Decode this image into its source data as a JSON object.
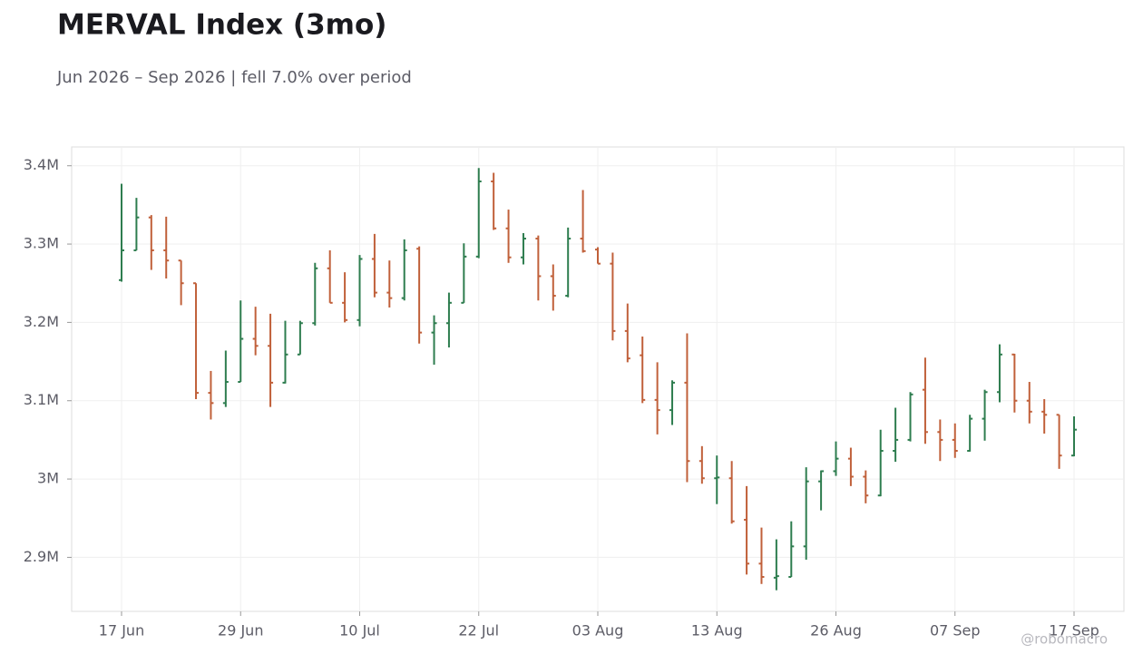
{
  "chart_data": {
    "type": "ohlc",
    "title": "MERVAL Index (3mo)",
    "subtitle": "Jun 2026 – Sep 2026 | fell 7.0% over period",
    "watermark": "@robomacro",
    "categories": [
      "17 Jun",
      null,
      null,
      null,
      null,
      null,
      null,
      null,
      "29 Jun",
      null,
      null,
      null,
      null,
      null,
      null,
      null,
      "10 Jul",
      null,
      null,
      null,
      null,
      null,
      null,
      null,
      "22 Jul",
      null,
      null,
      null,
      null,
      null,
      null,
      null,
      "03 Aug",
      null,
      null,
      null,
      null,
      null,
      null,
      null,
      "13 Aug",
      null,
      null,
      null,
      null,
      null,
      null,
      null,
      "26 Aug",
      null,
      null,
      null,
      null,
      null,
      null,
      null,
      "07 Sep",
      null,
      null,
      null,
      null,
      null,
      null,
      null,
      "17 Sep"
    ],
    "open": [
      3254000,
      3292000,
      3334000,
      3292000,
      3279000,
      3250000,
      3110000,
      3097000,
      3124000,
      3179000,
      3170000,
      3123000,
      3159000,
      3199000,
      3269000,
      3225000,
      3203000,
      3281000,
      3238000,
      3231000,
      3294000,
      3187000,
      3199000,
      3225000,
      3284000,
      3380000,
      3320000,
      3283000,
      3307000,
      3259000,
      3234000,
      3307000,
      3293000,
      3275000,
      3189000,
      3158000,
      3101000,
      3088000,
      3123000,
      3023000,
      3001000,
      3001000,
      2948000,
      2892000,
      2874000,
      2875000,
      2914000,
      2997000,
      3010000,
      3026000,
      3003000,
      2979000,
      3036000,
      3050000,
      3114000,
      3060000,
      3050000,
      3036000,
      3077000,
      3111000,
      3159000,
      3100000,
      3086000,
      3082000,
      3030000
    ],
    "high": [
      3377000,
      3359000,
      3337000,
      3335000,
      3279000,
      3250000,
      3138000,
      3164000,
      3228000,
      3220000,
      3211000,
      3202000,
      3202000,
      3276000,
      3292000,
      3264000,
      3286000,
      3313000,
      3279000,
      3306000,
      3297000,
      3209000,
      3238000,
      3301000,
      3397000,
      3391000,
      3344000,
      3314000,
      3311000,
      3274000,
      3321000,
      3369000,
      3296000,
      3289000,
      3224000,
      3182000,
      3149000,
      3126000,
      3186000,
      3042000,
      3030000,
      3023000,
      2991000,
      2938000,
      2923000,
      2946000,
      3015000,
      3011000,
      3048000,
      3040000,
      3011000,
      3063000,
      3091000,
      3111000,
      3155000,
      3076000,
      3071000,
      3082000,
      3114000,
      3172000,
      3160000,
      3124000,
      3102000,
      3082000,
      3080000
    ],
    "low": [
      3252000,
      3292000,
      3267000,
      3256000,
      3222000,
      3102000,
      3076000,
      3092000,
      3124000,
      3158000,
      3092000,
      3122000,
      3159000,
      3196000,
      3225000,
      3200000,
      3195000,
      3232000,
      3219000,
      3228000,
      3173000,
      3146000,
      3168000,
      3225000,
      3282000,
      3318000,
      3276000,
      3274000,
      3228000,
      3215000,
      3232000,
      3289000,
      3275000,
      3177000,
      3149000,
      3097000,
      3057000,
      3069000,
      2996000,
      2994000,
      2968000,
      2943000,
      2878000,
      2866000,
      2858000,
      2875000,
      2897000,
      2960000,
      3004000,
      2991000,
      2969000,
      2978000,
      3022000,
      3048000,
      3045000,
      3023000,
      3027000,
      3035000,
      3049000,
      3098000,
      3085000,
      3071000,
      3058000,
      3013000,
      3029000
    ],
    "close": [
      3292000,
      3334000,
      3292000,
      3279000,
      3250000,
      3110000,
      3097000,
      3124000,
      3179000,
      3170000,
      3123000,
      3159000,
      3199000,
      3269000,
      3225000,
      3203000,
      3281000,
      3238000,
      3231000,
      3292000,
      3187000,
      3199000,
      3225000,
      3284000,
      3380000,
      3320000,
      3283000,
      3307000,
      3259000,
      3234000,
      3307000,
      3291000,
      3275000,
      3189000,
      3154000,
      3101000,
      3088000,
      3123000,
      3023000,
      3001000,
      3002000,
      2946000,
      2892000,
      2875000,
      2876000,
      2914000,
      2997000,
      3010000,
      3026000,
      3003000,
      2979000,
      3036000,
      3050000,
      3108000,
      3060000,
      3050000,
      3036000,
      3077000,
      3111000,
      3159000,
      3100000,
      3086000,
      3082000,
      3030000,
      3063000
    ],
    "up_color": "#2e7d4f",
    "down_color": "#c0603a",
    "ylim": [
      2831000,
      3424000
    ],
    "yticks": [
      {
        "value": 2900000,
        "label": "2.9M"
      },
      {
        "value": 3000000,
        "label": "3M"
      },
      {
        "value": 3100000,
        "label": "3.1M"
      },
      {
        "value": 3200000,
        "label": "3.2M"
      },
      {
        "value": 3300000,
        "label": "3.3M"
      },
      {
        "value": 3400000,
        "label": "3.4M"
      }
    ],
    "grid": true
  }
}
